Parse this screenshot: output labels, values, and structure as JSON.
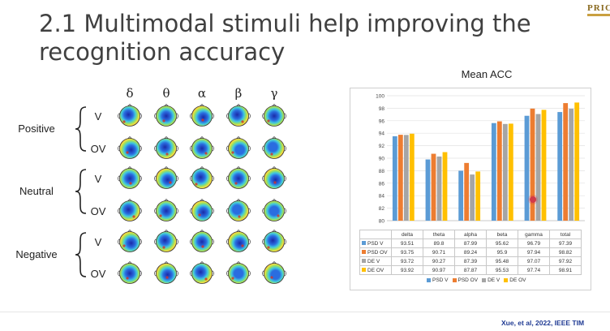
{
  "slide": {
    "title": "2.1 Multimodal stimuli help improving the recognition accuracy",
    "citation": "Xue, et al, 2022, IEEE TIM",
    "logo_text": "PRIC"
  },
  "topomap": {
    "bands": [
      "δ",
      "θ",
      "α",
      "β",
      "γ"
    ],
    "groups": [
      {
        "label": "Positive",
        "rows": [
          {
            "label": "V"
          },
          {
            "label": "OV"
          }
        ]
      },
      {
        "label": "Neutral",
        "rows": [
          {
            "label": "V"
          },
          {
            "label": "OV"
          }
        ]
      },
      {
        "label": "Negative",
        "rows": [
          {
            "label": "V"
          },
          {
            "label": "OV"
          }
        ]
      }
    ],
    "colormap": [
      "#1a2aa8",
      "#2a6de0",
      "#40c8e0",
      "#9ae060",
      "#f0e040",
      "#f09030",
      "#d83020"
    ]
  },
  "chart_data": {
    "type": "bar",
    "title": "Mean ACC",
    "categories": [
      "delta",
      "theta",
      "alpha",
      "beta",
      "gamma",
      "total"
    ],
    "ylim": [
      80,
      100
    ],
    "yticks": [
      80,
      82,
      84,
      86,
      88,
      90,
      92,
      94,
      96,
      98,
      100
    ],
    "grid": true,
    "legend_position": "bottom",
    "series": [
      {
        "name": "PSD V",
        "color": "#5b9bd5",
        "values": [
          93.51,
          89.8,
          87.99,
          95.62,
          96.79,
          97.39
        ],
        "labels": [
          "93.51",
          "89.8",
          "87.99",
          "95.62",
          "96.79",
          "97.39"
        ]
      },
      {
        "name": "PSD OV",
        "color": "#ed7d31",
        "values": [
          93.75,
          90.71,
          89.24,
          95.9,
          97.94,
          98.82
        ],
        "labels": [
          "93.75",
          "90.71",
          "89.24",
          "95.9",
          "97.94",
          "98.82"
        ]
      },
      {
        "name": "DE V",
        "color": "#a5a5a5",
        "values": [
          93.72,
          90.27,
          87.39,
          95.48,
          97.07,
          97.92
        ],
        "labels": [
          "93.72",
          "90.27",
          "87.39",
          "95.48",
          "97.07",
          "97.92"
        ]
      },
      {
        "name": "DE OV",
        "color": "#ffc000",
        "values": [
          93.92,
          90.97,
          87.87,
          95.53,
          97.74,
          98.91
        ],
        "labels": [
          "93.92",
          "90.97",
          "87.87",
          "95.53",
          "97.74",
          "98.91"
        ]
      }
    ]
  }
}
